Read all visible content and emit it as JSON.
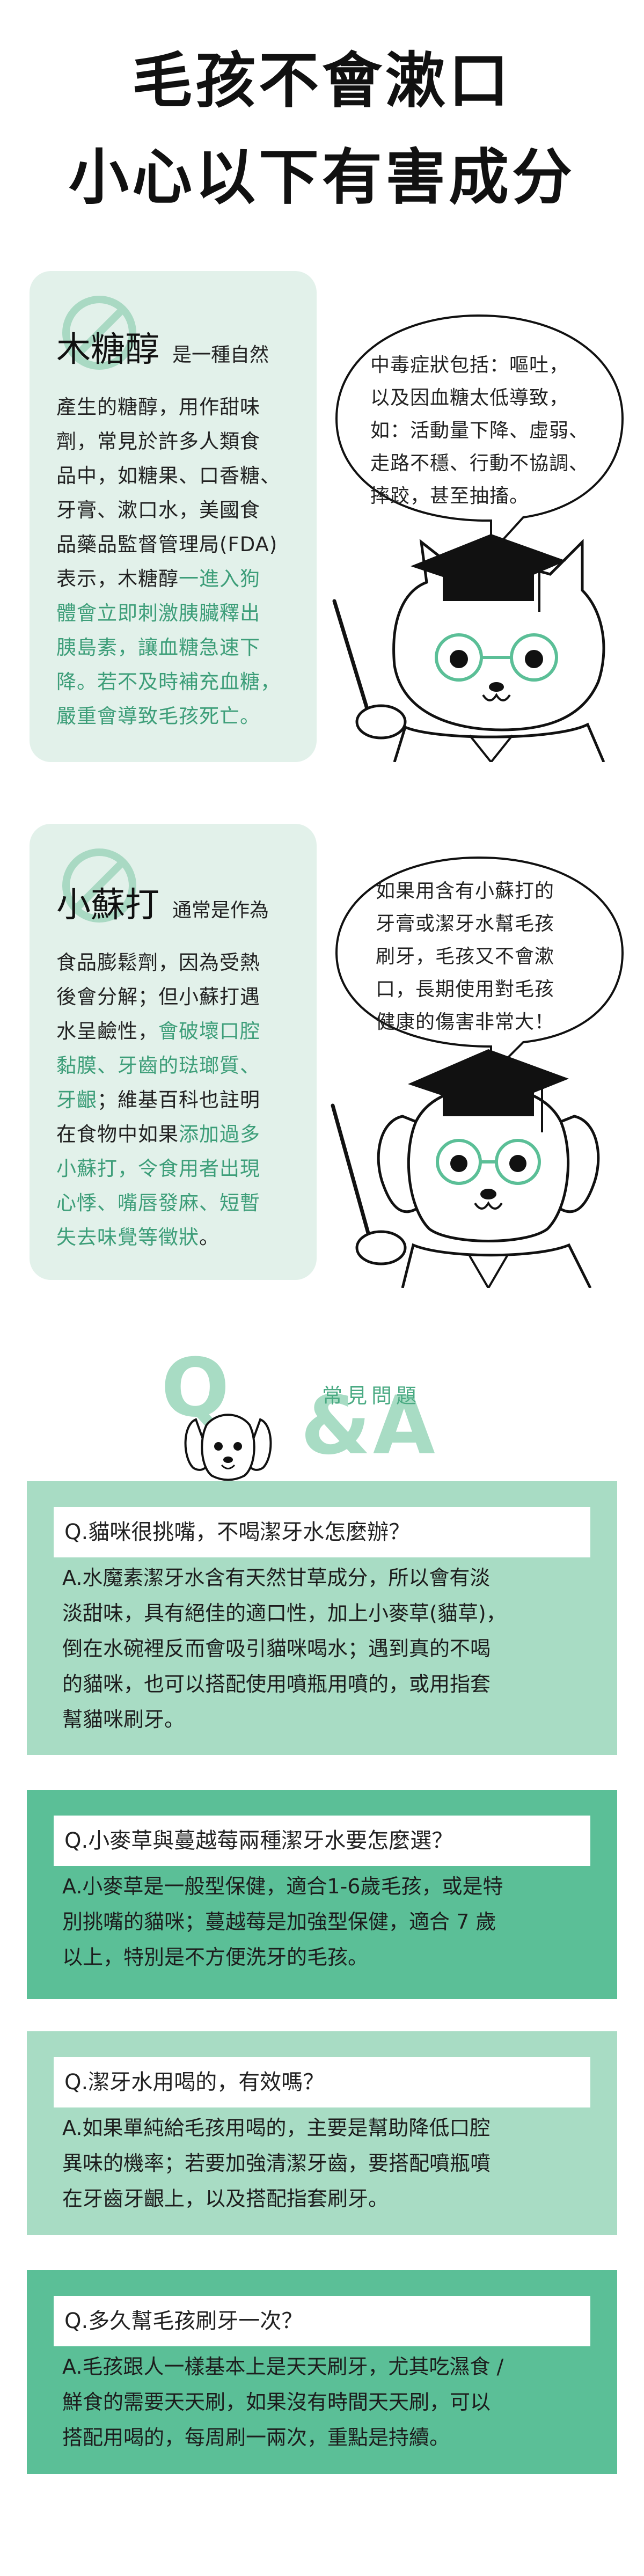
{
  "title": {
    "line1": "毛孩不會漱口",
    "line2": "小心以下有害成分"
  },
  "colors": {
    "card_bg": "#e2f1ea",
    "accent": "#3d9e79",
    "qa_light": "#a8dcc4",
    "qa_mid": "#5bbf97",
    "qa_dark": "#3fa882"
  },
  "xylitol": {
    "name": "木糖醇",
    "sub": "是一種自然",
    "lines": [
      {
        "text": "產生的糖醇，用作甜味",
        "hl": ""
      },
      {
        "text": "劑，常見於許多人類食",
        "hl": ""
      },
      {
        "text": "品中，如糖果、口香糖、",
        "hl": ""
      },
      {
        "text": "牙膏、漱口水，美國食",
        "hl": ""
      },
      {
        "text": "品藥品監督管理局(FDA)",
        "hl": ""
      },
      {
        "text": "表示，木糖醇",
        "hl": "一進入狗"
      },
      {
        "text": "",
        "hl": "體會立即刺激胰臟釋出"
      },
      {
        "text": "",
        "hl": "胰島素，讓血糖急速下"
      },
      {
        "text": "",
        "hl": "降。若不及時補充血糖，"
      },
      {
        "text": "",
        "hl": "嚴重會導致毛孩死亡。"
      }
    ],
    "bubble": [
      "中毒症狀包括：嘔吐，",
      "以及因血糖太低導致，",
      "如：活動量下降、虛弱、",
      "走路不穩、行動不協調、",
      "摔跤，甚至抽搐。"
    ]
  },
  "baking_soda": {
    "name": "小蘇打",
    "sub": "通常是作為",
    "lines": [
      {
        "text": "食品膨鬆劑，因為受熱",
        "hl": ""
      },
      {
        "text": "後會分解；但小蘇打遇",
        "hl": ""
      },
      {
        "text": "水呈鹼性，",
        "hl": "會破壞口腔"
      },
      {
        "text": "",
        "hl": "黏膜、牙齒的琺瑯質、"
      },
      {
        "text": "",
        "hl": "牙齦",
        "tail": "；維基百科也註明"
      },
      {
        "text": "在食物中如果",
        "hl": "添加過多"
      },
      {
        "text": "",
        "hl": "小蘇打，令食用者出現"
      },
      {
        "text": "",
        "hl": "心悸、嘴唇發麻、短暫"
      },
      {
        "text": "",
        "hl": "失去味覺等徵狀",
        "tail": "。"
      }
    ],
    "bubble": [
      "如果用含有小蘇打的",
      "牙膏或潔牙水幫毛孩",
      "刷牙，毛孩又不會漱",
      "口，長期使用對毛孩",
      "健康的傷害非常大！"
    ]
  },
  "qa_header": {
    "q": "Q",
    "amp_a": "&A",
    "small": "常見問題"
  },
  "qa": [
    {
      "q": "Q.貓咪很挑嘴，不喝潔牙水怎麼辦？",
      "a": [
        "A.水魔素潔牙水含有天然甘草成分，所以會有淡",
        "淡甜味，具有絕佳的適口性，加上小麥草(貓草)，",
        "倒在水碗裡反而會吸引貓咪喝水；遇到真的不喝",
        "的貓咪，也可以搭配使用噴瓶用噴的，或用指套",
        "幫貓咪刷牙。"
      ]
    },
    {
      "q": "Q.小麥草與蔓越莓兩種潔牙水要怎麼選？",
      "a": [
        "A.小麥草是一般型保健，適合1-6歲毛孩，或是特",
        "別挑嘴的貓咪；蔓越莓是加強型保健，適合 7 歲",
        "以上，特別是不方便洗牙的毛孩。"
      ]
    },
    {
      "q": "Q.潔牙水用喝的，有效嗎？",
      "a": [
        "A.如果單純給毛孩用喝的，主要是幫助降低口腔",
        "異味的機率；若要加強清潔牙齒，要搭配噴瓶噴",
        "在牙齒牙齦上，以及搭配指套刷牙。"
      ]
    },
    {
      "q": "Q.多久幫毛孩刷牙一次？",
      "a": [
        "A.毛孩跟人一樣基本上是天天刷牙，尤其吃濕食 /",
        "鮮食的需要天天刷，如果沒有時間天天刷，可以",
        "搭配用喝的，每周刷一兩次，重點是持續。"
      ]
    }
  ]
}
